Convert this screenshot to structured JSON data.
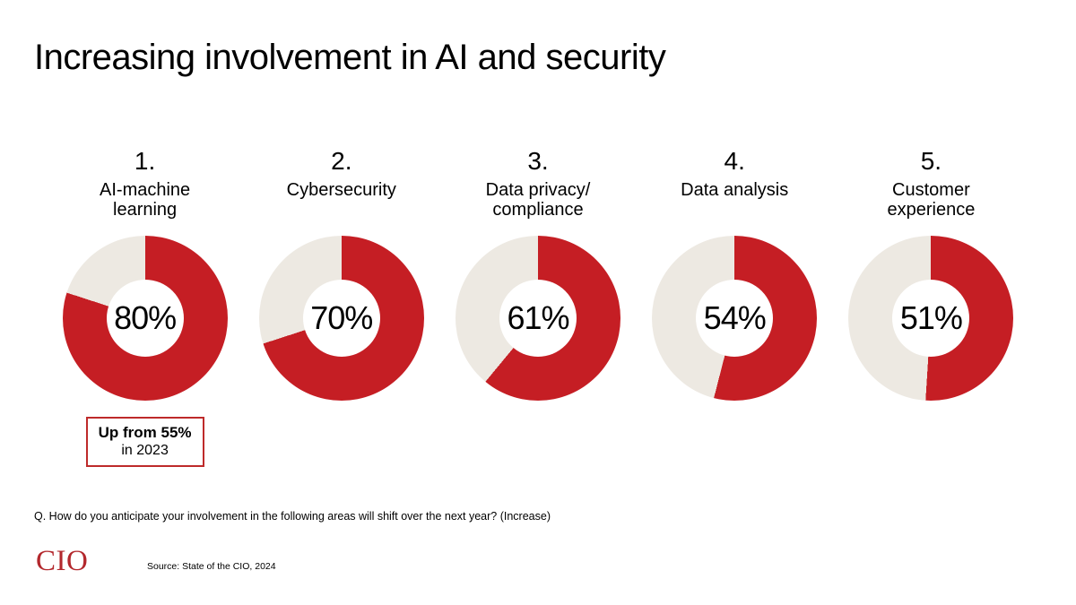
{
  "title": "Increasing involvement in AI and security",
  "colors": {
    "chart_red": "#C51E24",
    "track_beige": "#EDE9E2",
    "logo_red": "#B3282D",
    "callout_border_red": "#BE2A2A",
    "text_black": "#000000"
  },
  "chart_data": {
    "type": "pie",
    "variant": "donut",
    "unit": "%",
    "start_angle_deg": 0,
    "direction": "clockwise",
    "legend": "off",
    "items": [
      {
        "rank": "1.",
        "label": "AI-machine learning",
        "value": 80,
        "callout": {
          "line1": "Up from 55%",
          "line2": "in 2023"
        }
      },
      {
        "rank": "2.",
        "label": "Cybersecurity",
        "value": 70
      },
      {
        "rank": "3.",
        "label": "Data privacy/ compliance",
        "value": 61
      },
      {
        "rank": "4.",
        "label": "Data analysis",
        "value": 54
      },
      {
        "rank": "5.",
        "label": "Customer experience",
        "value": 51
      }
    ]
  },
  "footnote": "Q. How do you anticipate your involvement in the following areas will shift over the next year? (Increase)",
  "footer": {
    "logo_text": "CIO",
    "source": "Source: State of the CIO, 2024"
  }
}
